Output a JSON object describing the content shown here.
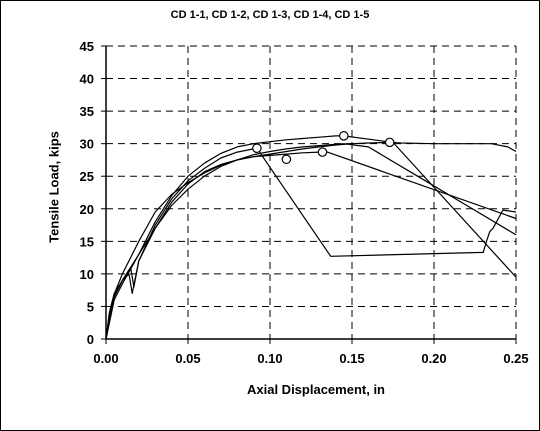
{
  "chart_data": {
    "type": "line",
    "title": "CD 1-1, CD 1-2, CD 1-3, CD 1-4, CD 1-5",
    "xlabel": "Axial Displacement, in",
    "ylabel": "Tensile Load, kips",
    "xlim": [
      0,
      0.25
    ],
    "ylim": [
      0,
      45
    ],
    "xticks": [
      "0.00",
      "0.05",
      "0.10",
      "0.15",
      "0.20",
      "0.25"
    ],
    "yticks": [
      "0",
      "5",
      "10",
      "15",
      "20",
      "25",
      "30",
      "35",
      "40",
      "45"
    ],
    "grid": "dashed",
    "legend": "none",
    "series": [
      {
        "x": [
          0,
          0.002,
          0.005,
          0.01,
          0.015,
          0.02,
          0.03,
          0.04,
          0.05,
          0.06,
          0.07,
          0.08,
          0.09,
          0.1,
          0.11,
          0.12,
          0.13,
          0.14,
          0.145,
          0.16,
          0.19,
          0.22,
          0.25
        ],
        "y": [
          0,
          3.5,
          6.5,
          9,
          11,
          13,
          17,
          20.5,
          23,
          25,
          26.5,
          27.5,
          28.3,
          28.8,
          29.2,
          29.5,
          29.7,
          29.9,
          30,
          29.5,
          25,
          20.5,
          16
        ]
      },
      {
        "x": [
          0,
          0.002,
          0.005,
          0.01,
          0.014,
          0.016,
          0.02,
          0.03,
          0.04,
          0.05,
          0.06,
          0.07,
          0.08,
          0.09,
          0.092,
          0.137,
          0.23,
          0.232,
          0.234,
          0.236,
          0.242,
          0.25
        ],
        "y": [
          0,
          4,
          7,
          9,
          10,
          7,
          12,
          17.5,
          21.5,
          24.3,
          26.2,
          27.8,
          28.7,
          29.2,
          29.3,
          12.7,
          13.3,
          15,
          16.5,
          17,
          19.8,
          19.5
        ]
      },
      {
        "x": [
          0,
          0.005,
          0.01,
          0.02,
          0.03,
          0.04,
          0.05,
          0.06,
          0.07,
          0.08,
          0.09,
          0.1,
          0.11,
          0.12,
          0.13,
          0.14,
          0.145,
          0.175,
          0.25
        ],
        "y": [
          0,
          6,
          8.5,
          13,
          18,
          22,
          25,
          27,
          28.5,
          29.5,
          30,
          30.3,
          30.6,
          30.8,
          31,
          31.2,
          31.2,
          30.2,
          9.5
        ]
      },
      {
        "x": [
          0,
          0.005,
          0.01,
          0.015,
          0.017,
          0.02,
          0.03,
          0.04,
          0.05,
          0.06,
          0.07,
          0.08,
          0.09,
          0.1,
          0.11,
          0.12,
          0.13,
          0.14,
          0.15,
          0.16,
          0.173,
          0.18,
          0.2,
          0.22,
          0.235,
          0.245,
          0.25
        ],
        "y": [
          0,
          6.5,
          9,
          11,
          8,
          12,
          17,
          21,
          23.8,
          25.7,
          26.8,
          27.5,
          28,
          28.4,
          28.8,
          29.2,
          29.5,
          29.8,
          30,
          30.1,
          30.2,
          30.1,
          30,
          30,
          30,
          29.5,
          28.8
        ]
      },
      {
        "x": [
          0,
          0.003,
          0.006,
          0.01,
          0.015,
          0.02,
          0.03,
          0.04,
          0.05,
          0.06,
          0.07,
          0.08,
          0.09,
          0.1,
          0.11,
          0.12,
          0.13,
          0.135,
          0.25
        ],
        "y": [
          0,
          5,
          7.5,
          10,
          12.5,
          15,
          19.5,
          22.2,
          24,
          25.5,
          26.7,
          27.5,
          28,
          28.2,
          28.4,
          28.6,
          28.7,
          28.7,
          18.5
        ]
      }
    ],
    "markers": {
      "x": [
        0.092,
        0.11,
        0.132,
        0.145,
        0.173
      ],
      "y": [
        29.3,
        27.6,
        28.7,
        31.2,
        30.2
      ]
    }
  }
}
